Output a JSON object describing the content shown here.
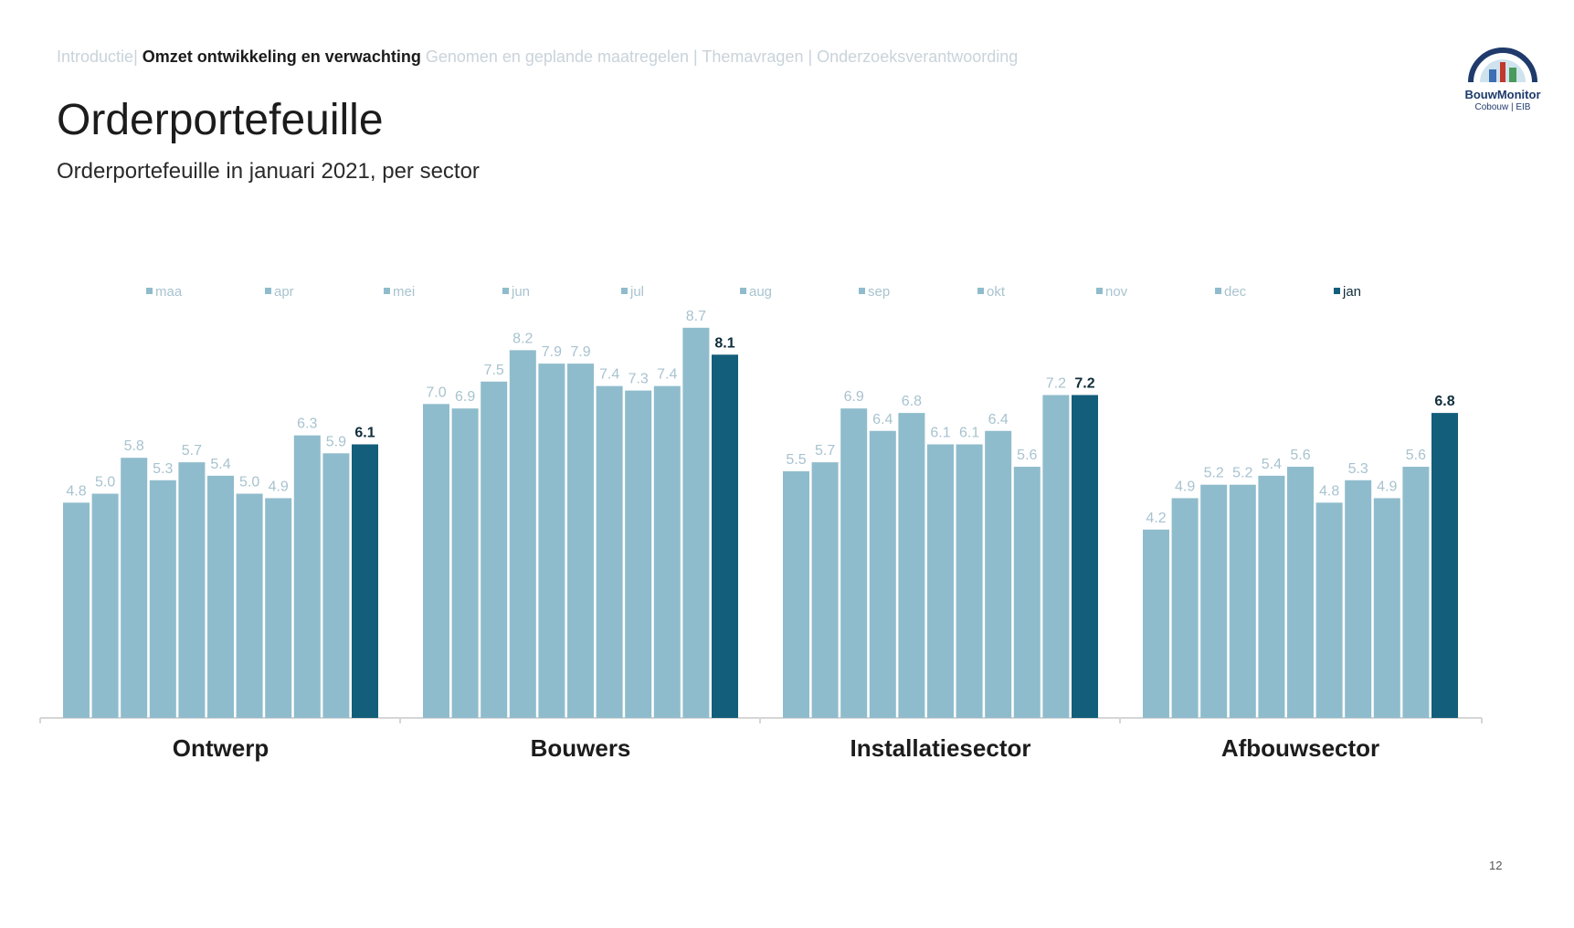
{
  "breadcrumb": {
    "items": [
      "Introductie",
      "Omzet ontwikkeling en verwachting",
      "Genomen en geplande maatregelen",
      "Themavragen",
      "Onderzoeksverantwoording"
    ],
    "active_index": 1
  },
  "header": {
    "title": "Orderportefeuille",
    "subtitle": "Orderportefeuille in januari 2021, per sector"
  },
  "logo": {
    "brand": "BouwMonitor",
    "sub": "Cobouw | EIB"
  },
  "page_number": "12",
  "colors": {
    "past_months": "#8fbccc",
    "current_month": "#135e7b",
    "label_muted": "#a8c3cf",
    "label_current": "#0f2d3a"
  },
  "chart_data": {
    "type": "bar",
    "title": "Orderportefeuille in januari 2021, per sector",
    "xlabel": "",
    "ylabel": "",
    "ylim": [
      0,
      10
    ],
    "grid": false,
    "legend_position": "top",
    "series_names": [
      "maa",
      "apr",
      "mei",
      "jun",
      "jul",
      "aug",
      "sep",
      "okt",
      "nov",
      "dec",
      "jan"
    ],
    "categories": [
      "Ontwerp",
      "Bouwers",
      "Installatiesector",
      "Afbouwsector"
    ],
    "values": [
      [
        4.8,
        5.0,
        5.8,
        5.3,
        5.7,
        5.4,
        5.0,
        4.9,
        6.3,
        5.9,
        6.1
      ],
      [
        7.0,
        6.9,
        7.5,
        8.2,
        7.9,
        7.9,
        7.4,
        7.3,
        7.4,
        8.7,
        8.1
      ],
      [
        5.5,
        5.7,
        6.9,
        6.4,
        6.8,
        6.1,
        6.1,
        6.4,
        5.6,
        7.2,
        7.2
      ],
      [
        4.2,
        4.9,
        5.2,
        5.2,
        5.4,
        5.6,
        4.8,
        5.3,
        4.9,
        5.6,
        6.8
      ]
    ],
    "highlight_series": "jan"
  }
}
